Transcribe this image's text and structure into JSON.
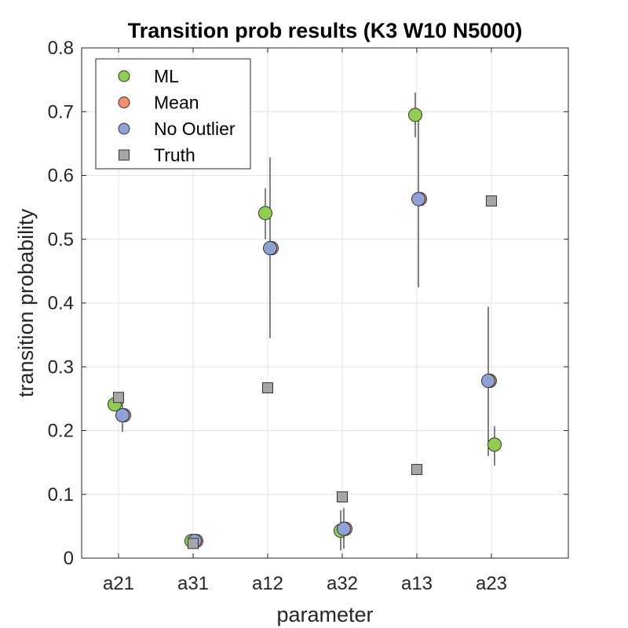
{
  "chart_data": {
    "type": "scatter",
    "title": "Transition prob results (K3 W10 N5000)",
    "xlabel": "parameter",
    "ylabel": "transition probability",
    "categories": [
      "a21",
      "a31",
      "a12",
      "a32",
      "a13",
      "a23"
    ],
    "ylim": [
      0,
      0.8
    ],
    "yticks": [
      "0",
      "0.1",
      "0.2",
      "0.3",
      "0.4",
      "0.5",
      "0.6",
      "0.7",
      "0.8"
    ],
    "grid": true,
    "legend_position": "top-left",
    "series": [
      {
        "name": "ML",
        "marker": "circle",
        "color": "#8fce4f",
        "values": [
          0.241,
          0.027,
          0.541,
          0.043,
          0.695,
          0.178
        ],
        "err_low": [
          0.233,
          0.024,
          0.5,
          0.012,
          0.66,
          0.145
        ],
        "err_high": [
          0.248,
          0.03,
          0.58,
          0.075,
          0.73,
          0.207
        ]
      },
      {
        "name": "Mean",
        "marker": "circle",
        "color": "#f58c6c",
        "values": [
          0.224,
          0.027,
          0.486,
          0.046,
          0.563,
          0.278
        ],
        "err_low": [
          0.198,
          0.024,
          0.345,
          0.015,
          0.425,
          0.16
        ],
        "err_high": [
          0.25,
          0.031,
          0.628,
          0.078,
          0.7,
          0.394
        ]
      },
      {
        "name": "No Outlier",
        "marker": "circle",
        "color": "#8ea2d6",
        "values": [
          0.224,
          0.027,
          0.486,
          0.046,
          0.563,
          0.278
        ],
        "err_low": [
          0.198,
          0.024,
          0.345,
          0.015,
          0.425,
          0.16
        ],
        "err_high": [
          0.25,
          0.031,
          0.628,
          0.078,
          0.7,
          0.394
        ]
      },
      {
        "name": "Truth",
        "marker": "square",
        "color": "#a6a6a6",
        "values": [
          0.252,
          0.023,
          0.267,
          0.096,
          0.139,
          0.56
        ]
      }
    ]
  }
}
